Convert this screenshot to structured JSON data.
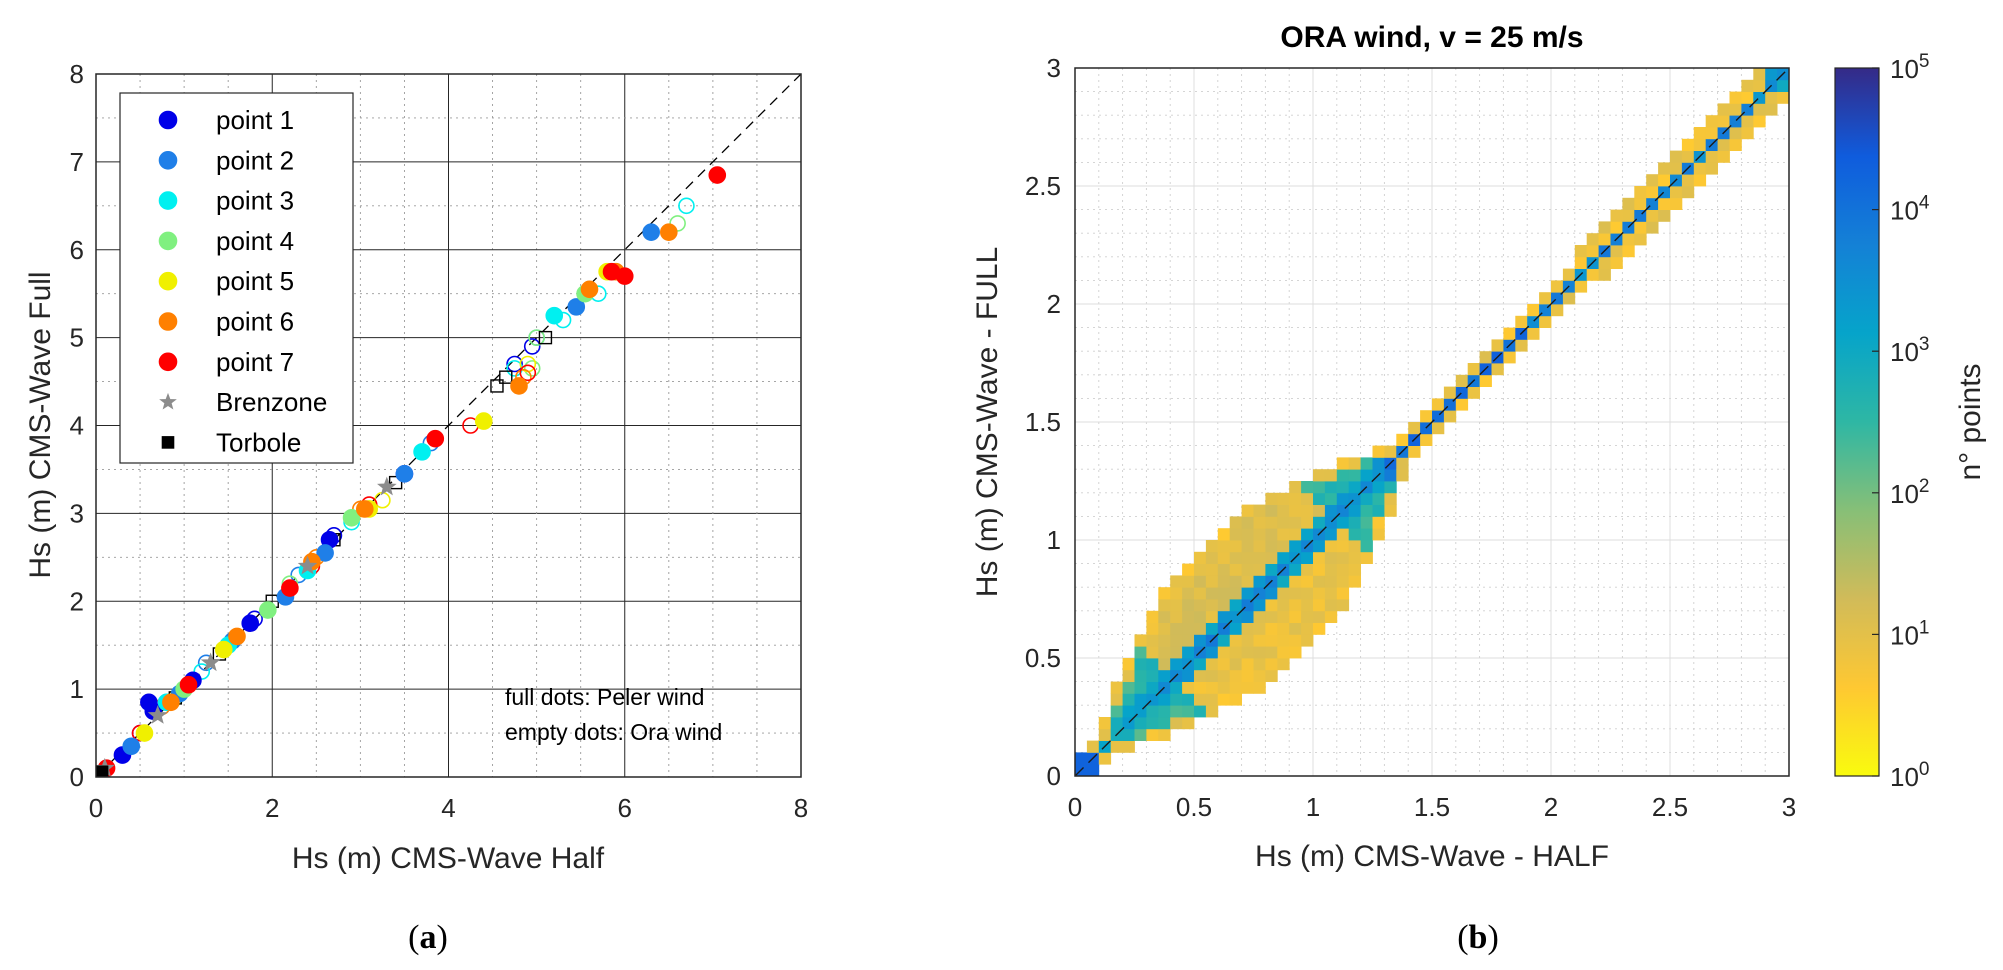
{
  "panel_labels": {
    "a": "a",
    "b": "b",
    "open": "(",
    "close": ")"
  },
  "chart_data": [
    {
      "type": "scatter",
      "xlabel": "Hs (m) CMS-Wave Half",
      "ylabel": "Hs (m) CMS-Wave Full",
      "xlim": [
        0,
        8
      ],
      "ylim": [
        0,
        8
      ],
      "xticks": [
        "0",
        "2",
        "4",
        "6",
        "8"
      ],
      "yticks": [
        "0",
        "1",
        "2",
        "3",
        "4",
        "5",
        "6",
        "7",
        "8"
      ],
      "grid": true,
      "reference_line": "1:1 dashed",
      "legend_position": "top-left",
      "legend": [
        {
          "label": "point 1",
          "marker": "circle",
          "color": "#0000e8"
        },
        {
          "label": "point 2",
          "marker": "circle",
          "color": "#1f7fe8"
        },
        {
          "label": "point 3",
          "marker": "circle",
          "color": "#00f0f0"
        },
        {
          "label": "point 4",
          "marker": "circle",
          "color": "#80f080"
        },
        {
          "label": "point 5",
          "marker": "circle",
          "color": "#f0f000"
        },
        {
          "label": "point 6",
          "marker": "circle",
          "color": "#ff8000"
        },
        {
          "label": "point 7",
          "marker": "circle",
          "color": "#ff0000"
        },
        {
          "label": "Brenzone",
          "marker": "star",
          "color": "#8c8c8c"
        },
        {
          "label": "Torbole",
          "marker": "square",
          "color": "#000000"
        }
      ],
      "annotations": [
        "full dots: Peler wind",
        "empty dots: Ora wind"
      ],
      "series": [
        {
          "name": "point 1",
          "full": [
            [
              0.6,
              0.85
            ],
            [
              0.3,
              0.25
            ],
            [
              0.65,
              0.75
            ],
            [
              1.1,
              1.1
            ],
            [
              1.75,
              1.75
            ],
            [
              2.65,
              2.7
            ],
            [
              3.5,
              3.45
            ]
          ],
          "empty": [
            [
              0.5,
              0.5
            ],
            [
              1.8,
              1.8
            ],
            [
              2.7,
              2.75
            ],
            [
              4.75,
              4.7
            ],
            [
              4.95,
              4.9
            ]
          ]
        },
        {
          "name": "point 2",
          "full": [
            [
              0.4,
              0.35
            ],
            [
              0.95,
              0.95
            ],
            [
              1.55,
              1.55
            ],
            [
              2.15,
              2.05
            ],
            [
              2.6,
              2.55
            ],
            [
              3.5,
              3.45
            ],
            [
              5.45,
              5.35
            ],
            [
              6.3,
              6.2
            ]
          ],
          "empty": [
            [
              1.25,
              1.3
            ],
            [
              2.3,
              2.3
            ],
            [
              3.8,
              3.8
            ],
            [
              5.0,
              5.0
            ]
          ]
        },
        {
          "name": "point 3",
          "full": [
            [
              0.8,
              0.85
            ],
            [
              1.5,
              1.5
            ],
            [
              2.4,
              2.35
            ],
            [
              3.7,
              3.7
            ],
            [
              5.2,
              5.25
            ]
          ],
          "empty": [
            [
              1.2,
              1.2
            ],
            [
              2.9,
              2.9
            ],
            [
              4.75,
              4.65
            ],
            [
              5.7,
              5.5
            ],
            [
              6.7,
              6.5
            ],
            [
              5.3,
              5.2
            ]
          ]
        },
        {
          "name": "point 4",
          "full": [
            [
              1.0,
              1.0
            ],
            [
              1.95,
              1.9
            ],
            [
              2.9,
              2.95
            ],
            [
              5.55,
              5.5
            ]
          ],
          "empty": [
            [
              0.9,
              0.9
            ],
            [
              2.2,
              2.2
            ],
            [
              4.95,
              4.65
            ],
            [
              6.6,
              6.3
            ],
            [
              5.0,
              5.0
            ]
          ]
        },
        {
          "name": "point 5",
          "full": [
            [
              0.55,
              0.5
            ],
            [
              1.45,
              1.45
            ],
            [
              3.1,
              3.05
            ],
            [
              4.4,
              4.05
            ],
            [
              5.8,
              5.75
            ]
          ],
          "empty": [
            [
              1.6,
              1.6
            ],
            [
              3.25,
              3.15
            ],
            [
              4.9,
              4.7
            ]
          ]
        },
        {
          "name": "point 6",
          "full": [
            [
              0.85,
              0.85
            ],
            [
              1.6,
              1.6
            ],
            [
              2.45,
              2.45
            ],
            [
              3.05,
              3.05
            ],
            [
              4.8,
              4.45
            ],
            [
              5.9,
              5.75
            ],
            [
              6.5,
              6.2
            ],
            [
              5.6,
              5.55
            ]
          ],
          "empty": [
            [
              0.75,
              0.8
            ],
            [
              2.5,
              2.5
            ],
            [
              4.85,
              4.55
            ],
            [
              3.0,
              3.05
            ]
          ]
        },
        {
          "name": "point 7",
          "full": [
            [
              0.12,
              0.1
            ],
            [
              1.05,
              1.05
            ],
            [
              2.2,
              2.15
            ],
            [
              3.85,
              3.85
            ],
            [
              6.0,
              5.7
            ],
            [
              7.05,
              6.85
            ],
            [
              5.85,
              5.75
            ]
          ],
          "empty": [
            [
              0.5,
              0.5
            ],
            [
              2.45,
              2.4
            ],
            [
              4.25,
              4.0
            ],
            [
              4.9,
              4.6
            ],
            [
              3.1,
              3.1
            ]
          ]
        },
        {
          "name": "Brenzone",
          "full": [
            [
              0.1,
              0.1
            ],
            [
              0.7,
              0.7
            ],
            [
              1.3,
              1.3
            ],
            [
              2.4,
              2.4
            ],
            [
              3.3,
              3.3
            ]
          ],
          "empty": []
        },
        {
          "name": "Torbole",
          "full": [
            [
              0.02,
              0.02
            ],
            [
              0.06,
              0.05
            ]
          ],
          "empty": [
            [
              3.4,
              3.35
            ],
            [
              4.55,
              4.45
            ],
            [
              4.65,
              4.55
            ],
            [
              5.1,
              5.0
            ],
            [
              2.7,
              2.7
            ],
            [
              1.4,
              1.4
            ],
            [
              0.9,
              0.9
            ],
            [
              2.0,
              2.0
            ]
          ]
        }
      ]
    },
    {
      "type": "heatmap",
      "title": "ORA wind, v = 25 m/s",
      "xlabel": "Hs (m) CMS-Wave - HALF",
      "ylabel": "Hs (m) CMS-Wave - FULL",
      "xlim": [
        0,
        3
      ],
      "ylim": [
        0,
        3
      ],
      "bin_size": 0.05,
      "xticks": [
        "0",
        "0.5",
        "1",
        "1.5",
        "2",
        "2.5",
        "3"
      ],
      "yticks": [
        "0",
        "0.5",
        "1",
        "1.5",
        "2",
        "2.5",
        "3"
      ],
      "reference_line": "1:1 dashed",
      "colorbar": {
        "label": "n° points",
        "scale": "log",
        "range": [
          1,
          100000
        ],
        "ticks": [
          {
            "base": "10",
            "exp": "0"
          },
          {
            "base": "10",
            "exp": "1"
          },
          {
            "base": "10",
            "exp": "2"
          },
          {
            "base": "10",
            "exp": "3"
          },
          {
            "base": "10",
            "exp": "4"
          },
          {
            "base": "10",
            "exp": "5"
          }
        ],
        "colormap": [
          "#352a87",
          "#0f5cdd",
          "#1481d6",
          "#06a4ca",
          "#2eb7a4",
          "#87bf77",
          "#d1bb59",
          "#fec832",
          "#f9fb0e"
        ]
      },
      "density_description": "narrow high-count band along the 1:1 line from 0 to 3 m, widening into an elliptical lobe between 0.15 and 1.4 m"
    }
  ]
}
